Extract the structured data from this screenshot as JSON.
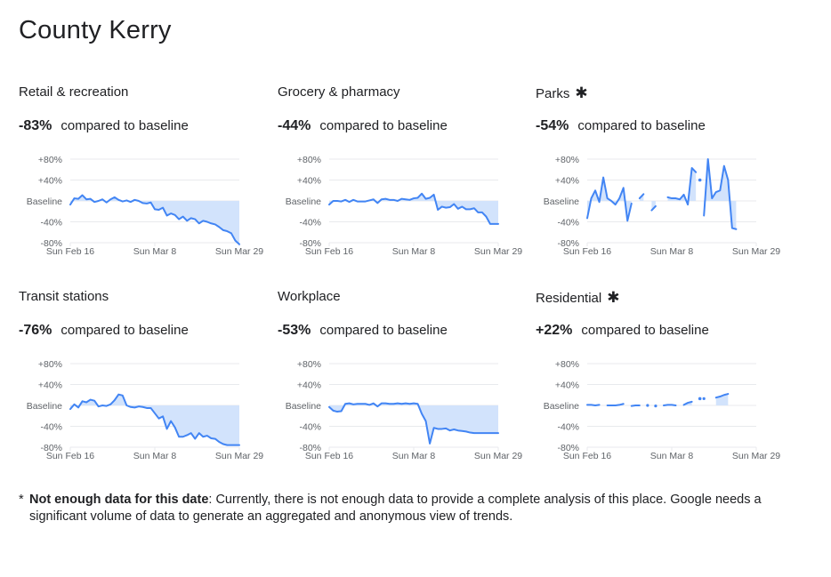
{
  "page": {
    "title": "County Kerry"
  },
  "footnote": {
    "marker": "*",
    "bold": "Not enough data for this date",
    "text": ": Currently, there is not enough data to provide a complete analysis of this place. Google needs a significant volume of data to generate an aggregated and anonymous view of trends."
  },
  "colors": {
    "line": "#4285f4",
    "fill": "#d2e3fc",
    "grid": "#e8eaed",
    "text": "#202124",
    "axis": "#5f6368"
  },
  "chart_data": [
    {
      "type": "line",
      "title": "Retail & recreation",
      "star": "",
      "value": "-83%",
      "compare": "compared to baseline",
      "ylim": [
        -80,
        80
      ],
      "yticks": [
        "+80%",
        "+40%",
        "Baseline",
        "-40%",
        "-80%"
      ],
      "xticks": [
        {
          "i": 0,
          "label": "Sun Feb 16"
        },
        {
          "i": 21,
          "label": "Sun Mar 8"
        },
        {
          "i": 42,
          "label": "Sun Mar 29"
        }
      ],
      "values": [
        -7,
        5,
        4,
        11,
        3,
        4,
        -2,
        0,
        3,
        -3,
        3,
        7,
        2,
        -1,
        1,
        -2,
        2,
        0,
        -4,
        -5,
        -3,
        -16,
        -17,
        -13,
        -28,
        -24,
        -27,
        -35,
        -30,
        -38,
        -33,
        -35,
        -43,
        -38,
        -40,
        -43,
        -45,
        -50,
        -56,
        -58,
        -62,
        -76,
        -83
      ],
      "gaps": []
    },
    {
      "type": "line",
      "title": "Grocery & pharmacy",
      "star": "",
      "value": "-44%",
      "compare": "compared to baseline",
      "ylim": [
        -80,
        80
      ],
      "yticks": [
        "+80%",
        "+40%",
        "Baseline",
        "-40%",
        "-80%"
      ],
      "xticks": [
        {
          "i": 0,
          "label": "Sun Feb 16"
        },
        {
          "i": 21,
          "label": "Sun Mar 8"
        },
        {
          "i": 42,
          "label": "Sun Mar 29"
        }
      ],
      "values": [
        -7,
        0,
        0,
        -1,
        2,
        -2,
        2,
        -1,
        -1,
        -1,
        1,
        3,
        -4,
        3,
        4,
        2,
        2,
        0,
        4,
        3,
        2,
        5,
        6,
        14,
        4,
        6,
        12,
        -17,
        -11,
        -13,
        -12,
        -6,
        -15,
        -11,
        -16,
        -16,
        -14,
        -22,
        -22,
        -30,
        -44,
        -44,
        -44
      ],
      "gaps": []
    },
    {
      "type": "line",
      "title": "Parks",
      "star": "✱",
      "value": "-54%",
      "compare": "compared to baseline",
      "ylim": [
        -80,
        80
      ],
      "yticks": [
        "+80%",
        "+40%",
        "Baseline",
        "-40%",
        "-80%"
      ],
      "xticks": [
        {
          "i": 0,
          "label": "Sun Feb 16"
        },
        {
          "i": 21,
          "label": "Sun Mar 8"
        },
        {
          "i": 42,
          "label": "Sun Mar 29"
        }
      ],
      "values": [
        -33,
        5,
        20,
        -2,
        45,
        5,
        0,
        -7,
        5,
        25,
        -38,
        -5,
        null,
        5,
        13,
        null,
        -18,
        -10,
        null,
        null,
        7,
        5,
        5,
        3,
        12,
        -7,
        63,
        55,
        null,
        -28,
        80,
        5,
        17,
        20,
        67,
        40,
        -52,
        -54,
        null,
        null,
        null,
        null,
        null
      ],
      "dots": [
        {
          "i": 28,
          "v": 40
        }
      ],
      "gaps": []
    },
    {
      "type": "line",
      "title": "Transit stations",
      "star": "",
      "value": "-76%",
      "compare": "compared to baseline",
      "ylim": [
        -80,
        80
      ],
      "yticks": [
        "+80%",
        "+40%",
        "Baseline",
        "-40%",
        "-80%"
      ],
      "xticks": [
        {
          "i": 0,
          "label": "Sun Feb 16"
        },
        {
          "i": 21,
          "label": "Sun Mar 8"
        },
        {
          "i": 42,
          "label": "Sun Mar 29"
        }
      ],
      "values": [
        -7,
        2,
        -4,
        8,
        6,
        11,
        9,
        -2,
        0,
        -1,
        2,
        10,
        21,
        19,
        0,
        -3,
        -4,
        -2,
        -3,
        -5,
        -5,
        -15,
        -25,
        -21,
        -45,
        -30,
        -42,
        -60,
        -60,
        -57,
        -53,
        -64,
        -53,
        -60,
        -58,
        -63,
        -64,
        -70,
        -74,
        -76,
        -76,
        -76,
        -76
      ],
      "gaps": []
    },
    {
      "type": "line",
      "title": "Workplace",
      "star": "",
      "value": "-53%",
      "compare": "compared to baseline",
      "ylim": [
        -80,
        80
      ],
      "yticks": [
        "+80%",
        "+40%",
        "Baseline",
        "-40%",
        "-80%"
      ],
      "xticks": [
        {
          "i": 0,
          "label": "Sun Feb 16"
        },
        {
          "i": 21,
          "label": "Sun Mar 8"
        },
        {
          "i": 42,
          "label": "Sun Mar 29"
        }
      ],
      "values": [
        -3,
        -10,
        -12,
        -11,
        3,
        4,
        2,
        3,
        3,
        3,
        1,
        4,
        -2,
        4,
        4,
        3,
        3,
        4,
        3,
        4,
        3,
        4,
        3,
        -16,
        -30,
        -73,
        -43,
        -45,
        -45,
        -44,
        -48,
        -46,
        -48,
        -49,
        -50,
        -52,
        -53,
        -53,
        -53,
        -53,
        -53,
        -53,
        -53
      ],
      "gaps": []
    },
    {
      "type": "line",
      "title": "Residential",
      "star": "✱",
      "value": "+22%",
      "compare": "compared to baseline",
      "ylim": [
        -80,
        80
      ],
      "yticks": [
        "+80%",
        "+40%",
        "Baseline",
        "-40%",
        "-80%"
      ],
      "xticks": [
        {
          "i": 0,
          "label": "Sun Feb 16"
        },
        {
          "i": 21,
          "label": "Sun Mar 8"
        },
        {
          "i": 42,
          "label": "Sun Mar 29"
        }
      ],
      "values": [
        1,
        1,
        0,
        1,
        null,
        0,
        0,
        0,
        1,
        3,
        null,
        -1,
        0,
        0,
        null,
        0,
        null,
        -1,
        null,
        0,
        1,
        1,
        0,
        null,
        1,
        5,
        7,
        null,
        null,
        13,
        null,
        null,
        15,
        17,
        20,
        22,
        null,
        null,
        null,
        null,
        null,
        null,
        null
      ],
      "dots": [
        {
          "i": 28,
          "v": 13
        }
      ],
      "gaps": []
    }
  ]
}
